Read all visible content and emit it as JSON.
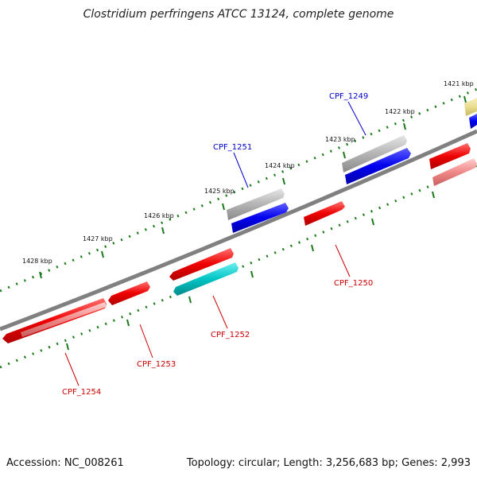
{
  "title": "Clostridium perfringens ATCC 13124, complete genome",
  "footer": {
    "accession": "Accession: NC_008261",
    "summary": "Topology: circular; Length: 3,256,683 bp; Genes: 2,993"
  },
  "ticks": [
    "1421 kbp",
    "1422 kbp",
    "1423 kbp",
    "1424 kbp",
    "1425 kbp",
    "1426 kbp",
    "1427 kbp",
    "1428 kbp"
  ],
  "gene_labels": [
    "CPF_1249",
    "CPF_1251",
    "CPF_1250",
    "CPF_1252",
    "CPF_1253",
    "CPF_1254"
  ],
  "colors": {
    "backbone": "#808080",
    "tick": "#1a7a1a",
    "blue_label": "#0000cc",
    "red_label": "#cc0000",
    "red": "#ee0000",
    "pink": "#f08888",
    "blue": "#0000ee",
    "gray": "#b4b4b4",
    "cyan": "#00c4c4",
    "yellow": "#e8dc90"
  }
}
